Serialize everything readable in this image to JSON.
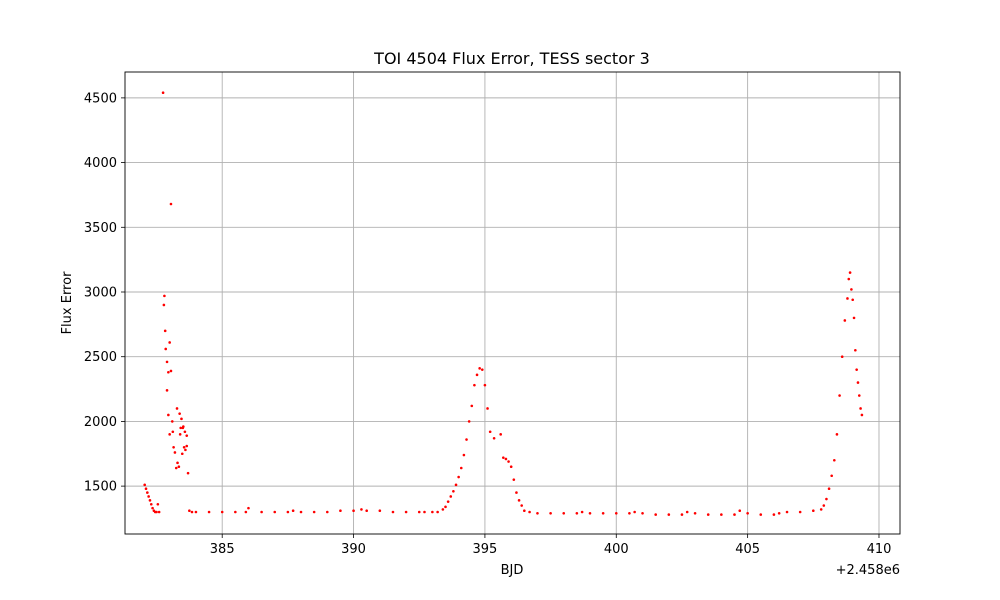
{
  "chart_data": {
    "type": "scatter",
    "title": "TOI 4504 Flux Error, TESS sector 3",
    "xlabel": "BJD",
    "ylabel": "Flux Error",
    "x_offset_label": "+2.458e6",
    "xlim": [
      381.3,
      410.8
    ],
    "ylim": [
      1130,
      4700
    ],
    "xticks": [
      385,
      390,
      395,
      400,
      405,
      410
    ],
    "yticks": [
      1500,
      2000,
      2500,
      3000,
      3500,
      4000,
      4500
    ],
    "grid": true,
    "marker_color": "#ff0000",
    "series": [
      {
        "x": [
          382.05,
          382.1,
          382.15,
          382.2,
          382.25,
          382.3,
          382.35,
          382.4,
          382.45,
          382.5,
          382.55,
          382.6,
          382.75,
          382.8,
          382.85,
          382.9,
          382.95,
          383.0,
          383.05,
          383.1,
          383.15,
          383.2,
          383.25,
          383.3,
          383.35,
          383.4,
          383.45,
          383.5,
          383.55,
          383.6,
          383.65,
          383.7,
          382.78,
          383.05,
          382.83,
          382.9,
          382.95,
          383.0,
          383.12,
          383.28,
          383.38,
          383.42,
          383.48,
          383.52,
          383.58,
          383.65,
          383.75,
          383.85,
          384.0,
          384.5,
          385.0,
          385.5,
          385.9,
          386.0,
          386.5,
          387.0,
          387.5,
          387.7,
          388.0,
          388.5,
          389.0,
          389.5,
          390.0,
          390.3,
          390.5,
          391.0,
          391.5,
          392.0,
          392.5,
          392.7,
          393.0,
          393.2,
          393.4,
          393.5,
          393.6,
          393.7,
          393.8,
          393.9,
          394.0,
          394.1,
          394.2,
          394.3,
          394.4,
          394.5,
          394.6,
          394.7,
          394.8,
          394.9,
          395.0,
          395.1,
          395.2,
          395.35,
          395.6,
          395.7,
          395.8,
          395.9,
          396.0,
          396.1,
          396.2,
          396.3,
          396.4,
          396.5,
          396.7,
          397.0,
          397.5,
          398.0,
          398.5,
          398.7,
          399.0,
          399.5,
          400.0,
          400.5,
          400.7,
          401.0,
          401.5,
          402.0,
          402.5,
          402.7,
          403.0,
          403.5,
          404.0,
          404.5,
          404.7,
          405.0,
          405.5,
          406.0,
          406.2,
          406.5,
          407.0,
          407.5,
          407.8,
          407.9,
          408.0,
          408.1,
          408.2,
          408.3,
          408.4,
          408.5,
          408.6,
          408.7,
          408.8,
          408.85,
          408.9,
          408.95,
          409.0,
          409.05,
          409.1,
          409.15,
          409.2,
          409.25,
          409.3,
          409.35
        ],
        "y": [
          1510,
          1480,
          1450,
          1420,
          1390,
          1360,
          1330,
          1310,
          1300,
          1300,
          1360,
          1300,
          4540,
          2970,
          2560,
          2240,
          2050,
          1900,
          2390,
          2000,
          1800,
          1760,
          1640,
          1680,
          1650,
          1900,
          2020,
          1950,
          1800,
          1780,
          1890,
          1600,
          2900,
          3680,
          2700,
          2460,
          2380,
          2610,
          1920,
          2100,
          2060,
          1950,
          1750,
          1960,
          1920,
          1810,
          1310,
          1300,
          1300,
          1300,
          1300,
          1300,
          1300,
          1330,
          1300,
          1300,
          1300,
          1310,
          1300,
          1300,
          1300,
          1310,
          1310,
          1320,
          1310,
          1310,
          1300,
          1300,
          1300,
          1300,
          1300,
          1300,
          1320,
          1340,
          1380,
          1420,
          1460,
          1510,
          1570,
          1640,
          1740,
          1860,
          2000,
          2120,
          2280,
          2360,
          2410,
          2400,
          2280,
          2100,
          1920,
          1870,
          1900,
          1720,
          1710,
          1690,
          1650,
          1550,
          1450,
          1390,
          1350,
          1310,
          1300,
          1290,
          1290,
          1290,
          1290,
          1300,
          1290,
          1290,
          1290,
          1290,
          1300,
          1290,
          1280,
          1280,
          1280,
          1300,
          1290,
          1280,
          1280,
          1280,
          1310,
          1290,
          1280,
          1280,
          1290,
          1300,
          1300,
          1310,
          1320,
          1350,
          1400,
          1480,
          1580,
          1700,
          1900,
          2200,
          2500,
          2780,
          2950,
          3100,
          3150,
          3020,
          2940,
          2800,
          2550,
          2400,
          2300,
          2200,
          2100,
          2050
        ]
      }
    ]
  }
}
